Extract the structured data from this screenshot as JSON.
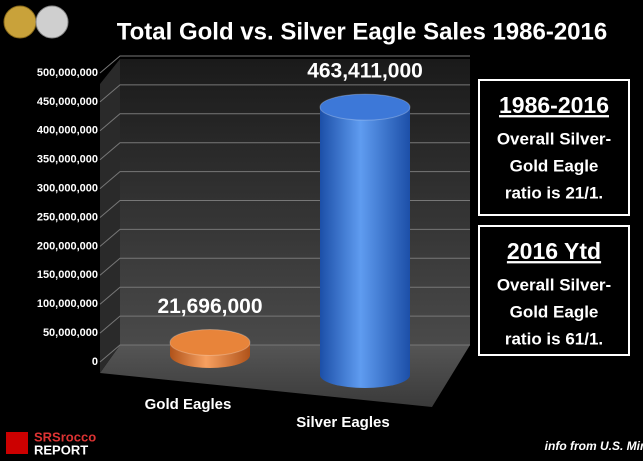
{
  "chart_data": {
    "type": "bar3d",
    "title": "Total Gold vs. Silver Eagle Sales 1986-2016",
    "categories": [
      "Gold Eagles",
      "Silver Eagles"
    ],
    "values": [
      21696000,
      463411000
    ],
    "value_labels": [
      "21,696,000",
      "463,411,000"
    ],
    "colors": [
      "#e8843a",
      "#3d78d8"
    ],
    "ylim": [
      0,
      500000000
    ],
    "yticks": [
      {
        "value": 0,
        "label": "0"
      },
      {
        "value": 50000000,
        "label": "50,000,000"
      },
      {
        "value": 100000000,
        "label": "100,000,000"
      },
      {
        "value": 150000000,
        "label": "150,000,000"
      },
      {
        "value": 200000000,
        "label": "200,000,000"
      },
      {
        "value": 250000000,
        "label": "250,000,000"
      },
      {
        "value": 300000000,
        "label": "300,000,000"
      },
      {
        "value": 350000000,
        "label": "350,000,000"
      },
      {
        "value": 400000000,
        "label": "400,000,000"
      },
      {
        "value": 450000000,
        "label": "450,000,000"
      },
      {
        "value": 500000000,
        "label": "500,000,000"
      }
    ],
    "grid": true,
    "annotations": [
      {
        "title": "1986-2016",
        "lines": [
          "Overall Silver-",
          "Gold Eagle",
          "ratio is 21/1."
        ]
      },
      {
        "title": "2016 Ytd",
        "lines": [
          "Overall Silver-",
          "Gold Eagle",
          "ratio is 61/1."
        ]
      }
    ],
    "source": "info from U.S. Mint",
    "logo": [
      "SRSrocco",
      "REPORT"
    ]
  }
}
